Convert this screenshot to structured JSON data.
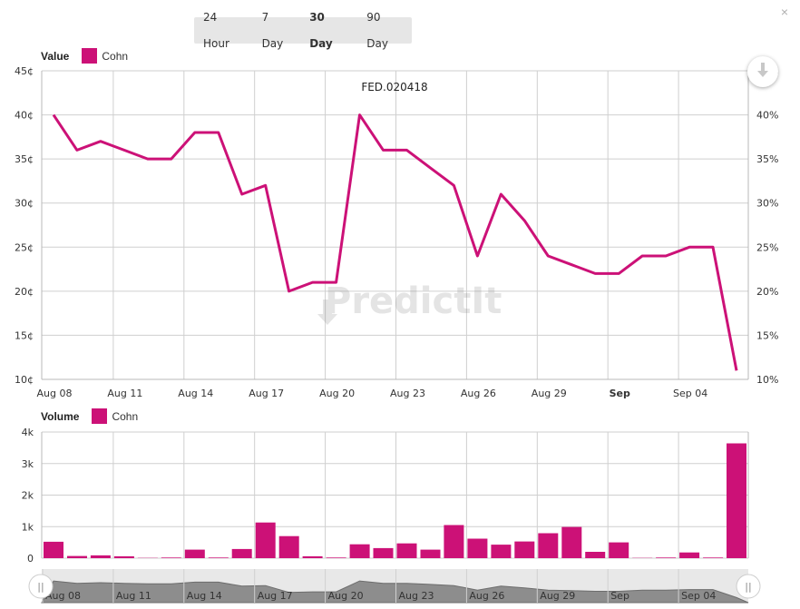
{
  "range_selector": {
    "buttons": [
      "24 Hour",
      "7 Day",
      "30 Day",
      "90 Day"
    ],
    "active": "30 Day"
  },
  "close_label": "×",
  "colors": {
    "series": "#cc1177",
    "grid": "#cfcfcf",
    "axis": "#b8b8b8",
    "navigator": "#8d8d8d"
  },
  "watermark": "PredictIt",
  "chart_data": [
    {
      "type": "line",
      "title": "FED.020418",
      "legend_title": "Value",
      "series": [
        {
          "name": "Cohn",
          "x": [
            "Aug 08",
            "Aug 09",
            "Aug 10",
            "Aug 11",
            "Aug 12",
            "Aug 13",
            "Aug 14",
            "Aug 15",
            "Aug 16",
            "Aug 17",
            "Aug 18",
            "Aug 19",
            "Aug 20",
            "Aug 21",
            "Aug 22",
            "Aug 23",
            "Aug 24",
            "Aug 25",
            "Aug 26",
            "Aug 27",
            "Aug 28",
            "Aug 29",
            "Aug 30",
            "Aug 31",
            "Sep 01",
            "Sep 02",
            "Sep 03",
            "Sep 04",
            "Sep 05",
            "Sep 06"
          ],
          "values": [
            40,
            36,
            37,
            36,
            35,
            35,
            38,
            38,
            31,
            32,
            20,
            21,
            21,
            40,
            36,
            36,
            34,
            32,
            24,
            31,
            28,
            24,
            23,
            22,
            22,
            24,
            24,
            25,
            25,
            11
          ]
        }
      ],
      "x_tick_labels": [
        "Aug 08",
        "Aug 11",
        "Aug 14",
        "Aug 17",
        "Aug 20",
        "Aug 23",
        "Aug 26",
        "Aug 29",
        "Sep",
        "Sep 04"
      ],
      "y_left_ticks": [
        "10¢",
        "15¢",
        "20¢",
        "25¢",
        "30¢",
        "35¢",
        "40¢",
        "45¢"
      ],
      "y_right_ticks": [
        "10%",
        "15%",
        "20%",
        "25%",
        "30%",
        "35%",
        "40%",
        "45%"
      ],
      "ylim": [
        10,
        45
      ],
      "grid": true,
      "legend_position": "top-left"
    },
    {
      "type": "bar",
      "legend_title": "Volume",
      "series": [
        {
          "name": "Cohn",
          "values": [
            520,
            70,
            90,
            60,
            10,
            20,
            270,
            20,
            290,
            1130,
            700,
            60,
            20,
            440,
            320,
            470,
            270,
            1050,
            620,
            430,
            530,
            790,
            990,
            200,
            500,
            10,
            20,
            180,
            20,
            3640
          ]
        }
      ],
      "y_ticks": [
        "0",
        "1k",
        "2k",
        "3k",
        "4k"
      ],
      "ylim": [
        0,
        4000
      ],
      "grid": true,
      "legend_position": "top-left"
    }
  ],
  "navigator": {
    "tick_labels": [
      "Aug 08",
      "Aug 11",
      "Aug 14",
      "Aug 17",
      "Aug 20",
      "Aug 23",
      "Aug 26",
      "Aug 29",
      "Sep",
      "Sep 04"
    ],
    "handle_glyph": "||"
  }
}
